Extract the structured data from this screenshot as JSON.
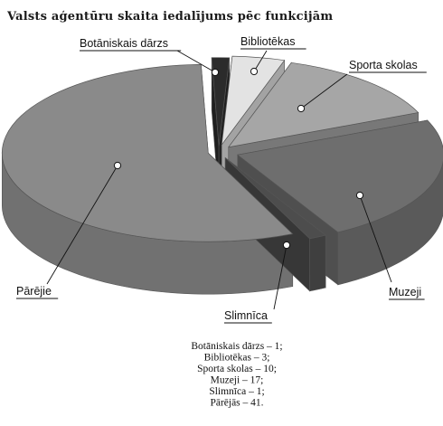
{
  "chart_data": {
    "type": "pie",
    "title": "Valsts aģentūru skaita iedalījums pēc funkcijām",
    "slices": [
      {
        "label": "Botāniskais dārzs",
        "value": 1,
        "color": "#2b2b2b",
        "callout": "Botāniskais dārzs"
      },
      {
        "label": "Bibliotēkas",
        "value": 3,
        "color": "#e3e3e3",
        "callout": "Bibliotēkas"
      },
      {
        "label": "Sporta skolas",
        "value": 10,
        "color": "#a6a6a6",
        "callout": "Sporta skolas"
      },
      {
        "label": "Muzeji",
        "value": 17,
        "color": "#6e6e6e",
        "callout": "Muzeji"
      },
      {
        "label": "Slimnīca",
        "value": 1,
        "color": "#4d4d4d",
        "callout": "Slimnīca"
      },
      {
        "label": "Pārējās",
        "value": 41,
        "color": "#8a8a8a",
        "callout": "Pārējie"
      }
    ],
    "summary_lines": [
      "Botāniskais dārzs – 1;",
      "Bibliotēkas – 3;",
      "Sporta skolas – 10;",
      "Muzeji – 17;",
      "Slimnīca – 1;",
      "Pārējās – 41."
    ]
  }
}
